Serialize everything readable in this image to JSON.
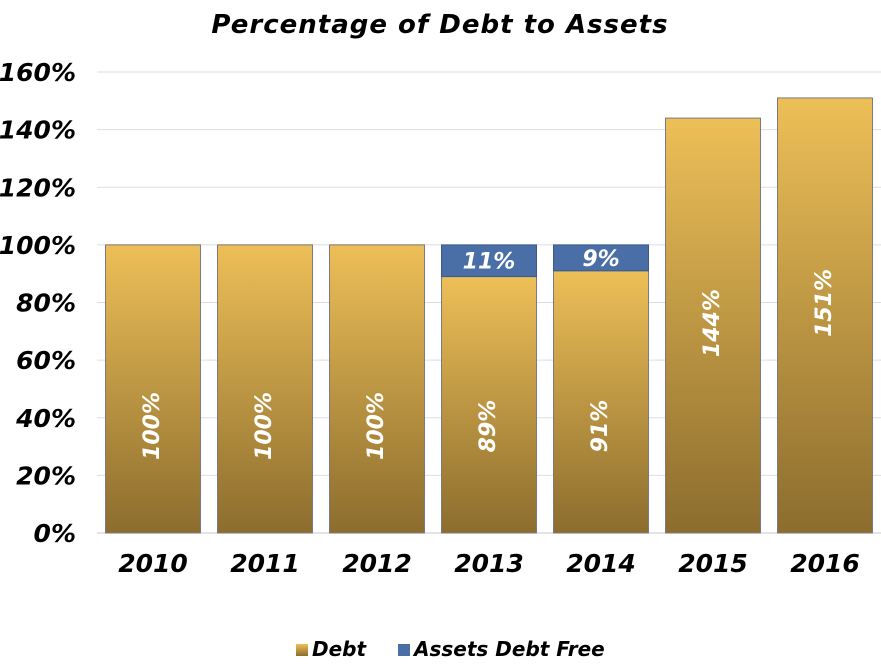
{
  "chart_data": {
    "type": "bar",
    "stacked": true,
    "title": "Percentage of Debt to Assets",
    "categories": [
      "2010",
      "2011",
      "2012",
      "2013",
      "2014",
      "2015",
      "2016"
    ],
    "series": [
      {
        "name": "Debt",
        "values": [
          100,
          100,
          100,
          89,
          91,
          144,
          151
        ],
        "labels": [
          "100%",
          "100%",
          "100%",
          "89%",
          "91%",
          "144%",
          "151%"
        ],
        "color": "#C9A443"
      },
      {
        "name": "Assets Debt Free",
        "values": [
          0,
          0,
          0,
          11,
          9,
          0,
          0
        ],
        "labels": [
          "",
          "",
          "",
          "11%",
          "9%",
          "",
          ""
        ],
        "color": "#4A6EA6"
      }
    ],
    "ylim": [
      0,
      160
    ],
    "yticks": [
      "0%",
      "20%",
      "40%",
      "60%",
      "80%",
      "100%",
      "120%",
      "140%",
      "160%"
    ],
    "grid": true,
    "legend": "bottom"
  }
}
